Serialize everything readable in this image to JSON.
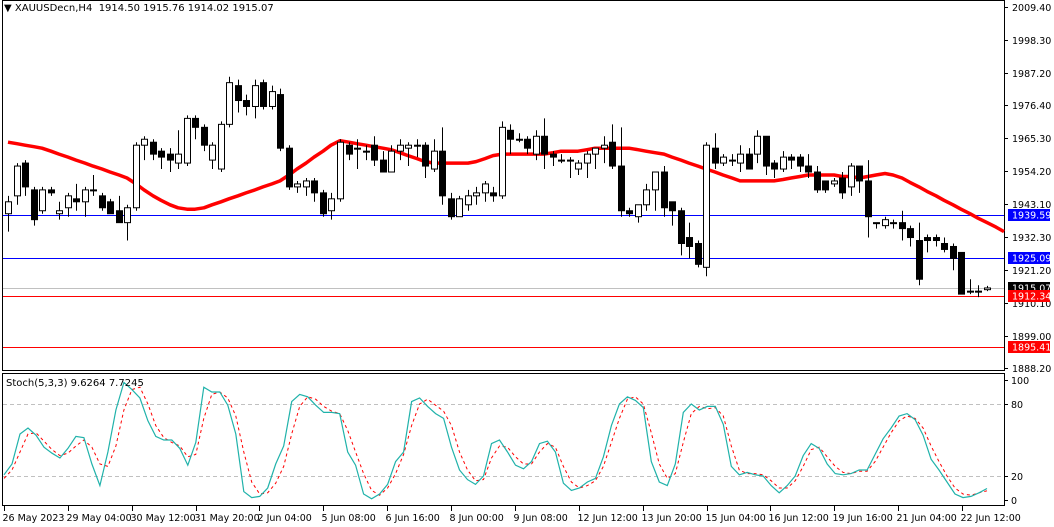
{
  "header": {
    "symbol": "XAUUSDecn,H4",
    "open": "1914.50",
    "high": "1915.76",
    "low": "1914.02",
    "close": "1915.07",
    "dropdown_icon": "triangle-down-icon"
  },
  "price_axis": {
    "ticks": [
      "2009.40",
      "1998.30",
      "1987.20",
      "1976.40",
      "1965.30",
      "1954.20",
      "1943.10",
      "1932.30",
      "1921.20",
      "1910.10",
      "1899.00",
      "1888.20"
    ],
    "min": 1888.2,
    "max": 2009.4
  },
  "levels": [
    {
      "name": "resistance-1",
      "value": "1939.59",
      "color": "#0000ff",
      "label_bg": "#0000ff"
    },
    {
      "name": "resistance-2",
      "value": "1925.09",
      "color": "#0000ff",
      "label_bg": "#0000ff"
    },
    {
      "name": "current-price",
      "value": "1915.07",
      "color": "#c0c0c0",
      "label_bg": "#000000"
    },
    {
      "name": "support-1",
      "value": "1912.34",
      "color": "#ff0000",
      "label_bg": "#ff0000"
    },
    {
      "name": "support-2",
      "value": "1895.41",
      "color": "#ff0000",
      "label_bg": "#ff0000"
    }
  ],
  "indicator": {
    "title": "Stoch(5,3,3) 9.6264 7.7245",
    "ticks": [
      "100",
      "80",
      "20",
      "0"
    ],
    "main_color": "#20b2aa",
    "signal_color": "#ff0000"
  },
  "time_axis": {
    "labels": [
      "26 May 2023",
      "29 May 04:00",
      "30 May 12:00",
      "31 May 20:00",
      "2 Jun 04:00",
      "5 Jun 08:00",
      "6 Jun 16:00",
      "8 Jun 00:00",
      "9 Jun 08:00",
      "12 Jun 12:00",
      "13 Jun 20:00",
      "15 Jun 04:00",
      "16 Jun 12:00",
      "19 Jun 16:00",
      "21 Jun 04:00",
      "22 Jun 12:00"
    ]
  },
  "colors": {
    "ma": "#ff0000",
    "bull_body": "#ffffff",
    "bear_body": "#000000",
    "grid_dash": "#c0c0c0"
  },
  "chart_data": [
    {
      "type": "candlestick",
      "title": "XAUUSDecn,H4 1914.50 1915.76 1914.02 1915.07",
      "xlabel": "",
      "ylabel": "",
      "ylim": [
        1888.2,
        2009.4
      ],
      "grid": false,
      "x_tick_labels": [
        "26 May 2023",
        "29 May 04:00",
        "30 May 12:00",
        "31 May 20:00",
        "2 Jun 04:00",
        "5 Jun 08:00",
        "6 Jun 16:00",
        "8 Jun 00:00",
        "9 Jun 08:00",
        "12 Jun 12:00",
        "13 Jun 20:00",
        "15 Jun 04:00",
        "16 Jun 12:00",
        "19 Jun 16:00",
        "21 Jun 04:00",
        "22 Jun 12:00"
      ],
      "y_tick_labels": [
        "2009.40",
        "1998.30",
        "1987.20",
        "1976.40",
        "1965.30",
        "1954.20",
        "1943.10",
        "1932.30",
        "1921.20",
        "1910.10",
        "1899.00",
        "1888.20"
      ],
      "horizontal_lines": [
        1939.59,
        1925.09,
        1915.07,
        1912.34,
        1895.41
      ],
      "ohlc": [
        [
          1940,
          1944,
          1934,
          1946
        ],
        [
          1946,
          1956,
          1943,
          1957
        ],
        [
          1957,
          1949,
          1946,
          1958
        ],
        [
          1948,
          1938,
          1936,
          1949
        ],
        [
          1941,
          1948,
          1940,
          1949
        ],
        [
          1948,
          1947,
          1946,
          1949
        ],
        [
          1940,
          1941,
          1938,
          1944
        ],
        [
          1942,
          1946,
          1939,
          1947
        ],
        [
          1945,
          1944,
          1941,
          1950
        ],
        [
          1944,
          1948,
          1939,
          1949
        ],
        [
          1948,
          1948,
          1946,
          1953
        ],
        [
          1946,
          1942,
          1941,
          1947
        ],
        [
          1944,
          1940,
          1940,
          1945
        ],
        [
          1941,
          1937,
          1937,
          1946
        ],
        [
          1937,
          1942,
          1931,
          1943
        ],
        [
          1942,
          1963,
          1941,
          1964
        ],
        [
          1963,
          1965,
          1958,
          1966
        ],
        [
          1964,
          1960,
          1958,
          1965
        ],
        [
          1961,
          1959,
          1955,
          1962
        ],
        [
          1960,
          1958,
          1954,
          1962
        ],
        [
          1957,
          1960,
          1955,
          1968
        ],
        [
          1957,
          1972,
          1956,
          1973
        ],
        [
          1972,
          1969,
          1965,
          1973
        ],
        [
          1969,
          1963,
          1961,
          1970
        ],
        [
          1958,
          1963,
          1955,
          1964
        ],
        [
          1955,
          1970,
          1954,
          1971
        ],
        [
          1970,
          1984,
          1969,
          1986
        ],
        [
          1983,
          1978,
          1974,
          1985
        ],
        [
          1978,
          1976,
          1973,
          1980
        ],
        [
          1976,
          1983,
          1972,
          1985
        ],
        [
          1984,
          1976,
          1975,
          1985
        ],
        [
          1976,
          1981,
          1975,
          1983
        ],
        [
          1980,
          1962,
          1961,
          1982
        ],
        [
          1962,
          1949,
          1948,
          1963
        ],
        [
          1949,
          1950,
          1947,
          1951
        ],
        [
          1949,
          1951,
          1946,
          1952
        ],
        [
          1951,
          1947,
          1944,
          1952
        ],
        [
          1947,
          1940,
          1939,
          1948
        ],
        [
          1941,
          1945,
          1938,
          1947
        ],
        [
          1945,
          1964,
          1944,
          1965
        ],
        [
          1963,
          1960,
          1958,
          1964
        ],
        [
          1962,
          1962,
          1955,
          1965
        ],
        [
          1961,
          1961,
          1958,
          1963
        ],
        [
          1963,
          1958,
          1956,
          1966
        ],
        [
          1958,
          1954,
          1954,
          1961
        ],
        [
          1954,
          1961,
          1954,
          1963
        ],
        [
          1961,
          1963,
          1958,
          1965
        ],
        [
          1962,
          1963,
          1956,
          1964
        ],
        [
          1963,
          1963,
          1959,
          1965
        ],
        [
          1963,
          1956,
          1952,
          1964
        ],
        [
          1955,
          1961,
          1954,
          1965
        ],
        [
          1961,
          1946,
          1943,
          1969
        ],
        [
          1945,
          1939,
          1938,
          1947
        ],
        [
          1939,
          1945,
          1939,
          1946
        ],
        [
          1943,
          1946,
          1941,
          1948
        ],
        [
          1946,
          1947,
          1943,
          1949
        ],
        [
          1947,
          1950,
          1944,
          1951
        ],
        [
          1947,
          1946,
          1944,
          1949
        ],
        [
          1946,
          1969,
          1945,
          1971
        ],
        [
          1968,
          1965,
          1960,
          1970
        ],
        [
          1965,
          1965,
          1964,
          1967
        ],
        [
          1965,
          1962,
          1960,
          1966
        ],
        [
          1960,
          1966,
          1958,
          1968
        ],
        [
          1966,
          1960,
          1955,
          1972
        ],
        [
          1960,
          1959,
          1956,
          1961
        ],
        [
          1958,
          1958,
          1957,
          1960
        ],
        [
          1958,
          1958,
          1952,
          1959
        ],
        [
          1955,
          1957,
          1953,
          1958
        ],
        [
          1957,
          1960,
          1952,
          1961
        ],
        [
          1960,
          1962,
          1955,
          1962
        ],
        [
          1962,
          1963,
          1957,
          1966
        ],
        [
          1964,
          1956,
          1955,
          1970
        ],
        [
          1956,
          1941,
          1939,
          1969
        ],
        [
          1941,
          1940,
          1939,
          1942
        ],
        [
          1939,
          1943,
          1937,
          1943
        ],
        [
          1943,
          1948,
          1941,
          1950
        ],
        [
          1948,
          1954,
          1941,
          1954
        ],
        [
          1954,
          1942,
          1939,
          1956
        ],
        [
          1944,
          1941,
          1936,
          1943
        ],
        [
          1941,
          1930,
          1926,
          1942
        ],
        [
          1932,
          1929,
          1925,
          1937
        ],
        [
          1930,
          1923,
          1922,
          1931
        ],
        [
          1922,
          1963,
          1919,
          1964
        ],
        [
          1962,
          1957,
          1955,
          1967
        ],
        [
          1957,
          1959,
          1956,
          1960
        ],
        [
          1958,
          1958,
          1956,
          1960
        ],
        [
          1957,
          1960,
          1954,
          1963
        ],
        [
          1960,
          1955,
          1955,
          1962
        ],
        [
          1960,
          1966,
          1957,
          1968
        ],
        [
          1966,
          1956,
          1953,
          1966
        ],
        [
          1957,
          1955,
          1952,
          1958
        ],
        [
          1955,
          1959,
          1954,
          1961
        ],
        [
          1959,
          1958,
          1955,
          1960
        ],
        [
          1959,
          1956,
          1954,
          1960
        ],
        [
          1956,
          1954,
          1952,
          1960
        ],
        [
          1954,
          1948,
          1947,
          1956
        ],
        [
          1951,
          1948,
          1947,
          1951
        ],
        [
          1950,
          1951,
          1949,
          1952
        ],
        [
          1952,
          1947,
          1945,
          1954
        ],
        [
          1949,
          1956,
          1946,
          1957
        ],
        [
          1956,
          1951,
          1947,
          1956
        ],
        [
          1951,
          1939,
          1932,
          1958
        ],
        [
          1937,
          1937,
          1935,
          1937
        ],
        [
          1936,
          1938,
          1935,
          1939
        ],
        [
          1937,
          1937,
          1935,
          1938
        ],
        [
          1937,
          1935,
          1931,
          1941
        ],
        [
          1935,
          1932,
          1929,
          1936
        ],
        [
          1931,
          1918,
          1916,
          1937
        ],
        [
          1932,
          1931,
          1927,
          1933
        ],
        [
          1932,
          1931,
          1929,
          1933
        ],
        [
          1930,
          1928,
          1927,
          1932
        ],
        [
          1929,
          1925,
          1921,
          1930
        ],
        [
          1927,
          1913,
          1913,
          1927
        ],
        [
          1914,
          1914,
          1913,
          1918
        ],
        [
          1914,
          1914,
          1912,
          1916
        ],
        [
          1914.5,
          1915.07,
          1914.02,
          1915.76
        ]
      ],
      "ma_series": [
        1964,
        1963.5,
        1963,
        1962.5,
        1962,
        1961,
        1960,
        1959,
        1958,
        1957,
        1956,
        1955,
        1954,
        1953,
        1952,
        1950,
        1948,
        1946,
        1944.5,
        1943,
        1942,
        1941.5,
        1941.5,
        1942,
        1943,
        1944,
        1945,
        1946,
        1947,
        1948,
        1949,
        1950,
        1951,
        1953,
        1955,
        1957,
        1959,
        1961,
        1963,
        1964.5,
        1964,
        1963.5,
        1963,
        1962.5,
        1962,
        1961.5,
        1960.5,
        1959.5,
        1958.5,
        1957.5,
        1957,
        1957,
        1957,
        1957,
        1957,
        1957.5,
        1958.5,
        1959.5,
        1960,
        1960,
        1960,
        1960,
        1960,
        1960,
        1960.5,
        1961,
        1961,
        1961,
        1961.5,
        1962,
        1962,
        1962,
        1962,
        1962,
        1961.5,
        1961,
        1960.5,
        1960,
        1959,
        1958,
        1957,
        1956,
        1955,
        1954,
        1953,
        1952,
        1951,
        1951,
        1951,
        1951,
        1951,
        1951.5,
        1952,
        1952.5,
        1953,
        1953,
        1953,
        1953,
        1952.5,
        1952.5,
        1952,
        1952.5,
        1953,
        1953.5,
        1953,
        1952,
        1950.5,
        1949,
        1947.5,
        1946,
        1944.5,
        1943,
        1941.5,
        1940,
        1938.5,
        1937,
        1935.5,
        1934
      ],
      "indicator": {
        "name": "Stoch(5,3,3)",
        "main_value": 9.6264,
        "signal_value": 7.7245,
        "ylim": [
          0,
          100
        ],
        "levels": [
          20,
          80
        ],
        "main": [
          21,
          30,
          55,
          60,
          54,
          44,
          39,
          35,
          43,
          53,
          52,
          30,
          12,
          40,
          75,
          98,
          92,
          85,
          66,
          53,
          50,
          50,
          43,
          29,
          48,
          94,
          90,
          90,
          79,
          55,
          7,
          2,
          3,
          10,
          30,
          45,
          82,
          88,
          86,
          79,
          73,
          73,
          72,
          40,
          29,
          5,
          1,
          5,
          13,
          32,
          40,
          82,
          85,
          78,
          72,
          68,
          44,
          25,
          17,
          13,
          20,
          47,
          50,
          40,
          29,
          26,
          32,
          47,
          49,
          40,
          14,
          8,
          10,
          15,
          18,
          36,
          62,
          80,
          86,
          83,
          77,
          32,
          15,
          12,
          30,
          73,
          80,
          75,
          78,
          78,
          63,
          28,
          21,
          23,
          21,
          20,
          12,
          6,
          12,
          20,
          37,
          47,
          43,
          30,
          22,
          21,
          22,
          25,
          25,
          38,
          51,
          60,
          70,
          72,
          67,
          54,
          34,
          25,
          15,
          5,
          2,
          3,
          6,
          9.6
        ],
        "signal": [
          18,
          25,
          40,
          55,
          56,
          49,
          42,
          37,
          39,
          45,
          50,
          44,
          30,
          28,
          45,
          75,
          92,
          94,
          80,
          62,
          52,
          48,
          45,
          36,
          38,
          68,
          88,
          90,
          85,
          70,
          40,
          15,
          5,
          6,
          14,
          28,
          55,
          78,
          86,
          84,
          78,
          74,
          72,
          58,
          40,
          22,
          8,
          4,
          10,
          22,
          38,
          62,
          80,
          84,
          79,
          74,
          62,
          40,
          25,
          16,
          17,
          35,
          45,
          44,
          36,
          30,
          30,
          40,
          47,
          44,
          28,
          15,
          10,
          12,
          16,
          28,
          48,
          68,
          84,
          86,
          80,
          56,
          30,
          18,
          22,
          48,
          72,
          78,
          76,
          77,
          70,
          45,
          25,
          22,
          22,
          21,
          16,
          10,
          10,
          16,
          28,
          42,
          44,
          36,
          28,
          23,
          22,
          24,
          24,
          32,
          44,
          56,
          66,
          70,
          68,
          60,
          45,
          32,
          20,
          10,
          5,
          4,
          6,
          7.7
        ]
      }
    }
  ]
}
